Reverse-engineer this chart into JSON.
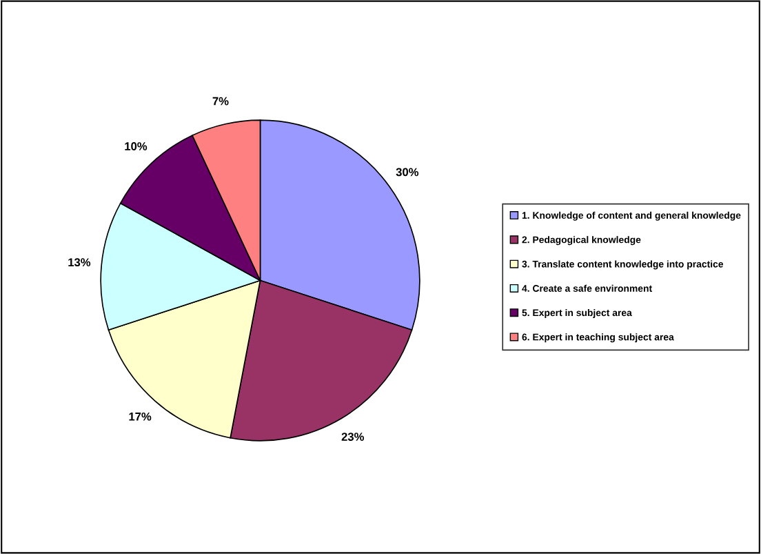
{
  "chart_data": {
    "type": "pie",
    "categories": [
      "1. Knowledge of content and general knowledge",
      "2. Pedagogical knowledge",
      "3. Translate content knowledge into practice",
      "4. Create a safe environment",
      "5. Expert in subject area",
      "6. Expert in teaching subject area"
    ],
    "values": [
      30,
      23,
      17,
      13,
      10,
      7
    ],
    "value_labels": [
      "30%",
      "23%",
      "17%",
      "13%",
      "10%",
      "7%"
    ],
    "colors": [
      "#9999ff",
      "#993366",
      "#ffffcc",
      "#ccffff",
      "#660066",
      "#ff8080"
    ],
    "legend": "right"
  }
}
